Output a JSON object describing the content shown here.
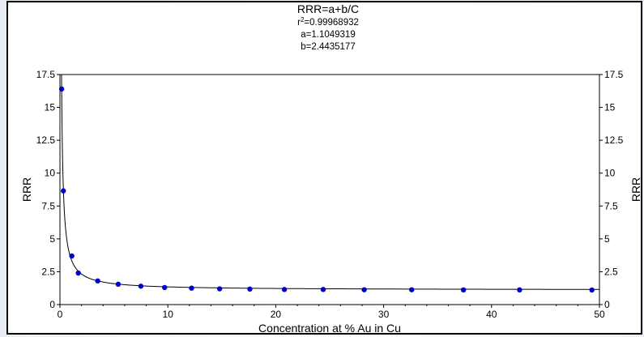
{
  "chart_data": {
    "type": "scatter",
    "title": "RRR=a+b/C",
    "subtitle_lines": [
      {
        "pre": "r",
        "sup": "2",
        "post": "=0.99968932"
      },
      {
        "pre": "a=1.1049319",
        "sup": "",
        "post": ""
      },
      {
        "pre": "b=2.4435177",
        "sup": "",
        "post": ""
      }
    ],
    "xlabel": "Concentration at % Au in Cu",
    "ylabel": "RRR",
    "ylabel_right": "RRR",
    "xlim": [
      0,
      50
    ],
    "ylim": [
      0,
      17.5
    ],
    "x_ticks": [
      0,
      10,
      20,
      30,
      40,
      50
    ],
    "y_ticks": [
      0,
      2.5,
      5,
      7.5,
      10,
      12.5,
      15,
      17.5
    ],
    "fit": {
      "model": "a+b/C",
      "a": 1.1049319,
      "b": 2.4435177
    },
    "series": [
      {
        "points": [
          [
            0.16,
            16.4
          ],
          [
            0.32,
            8.65
          ],
          [
            1.1,
            3.7
          ],
          [
            1.7,
            2.4
          ],
          [
            3.5,
            1.8
          ],
          [
            5.4,
            1.55
          ],
          [
            7.5,
            1.4
          ],
          [
            9.7,
            1.3
          ],
          [
            12.2,
            1.25
          ],
          [
            14.8,
            1.2
          ],
          [
            17.6,
            1.18
          ],
          [
            20.8,
            1.15
          ],
          [
            24.4,
            1.15
          ],
          [
            28.2,
            1.13
          ],
          [
            32.6,
            1.13
          ],
          [
            37.4,
            1.12
          ],
          [
            42.6,
            1.12
          ],
          [
            49.3,
            1.11
          ]
        ],
        "color": "#0000cc"
      }
    ],
    "line_color": "#000000",
    "grid": false
  }
}
